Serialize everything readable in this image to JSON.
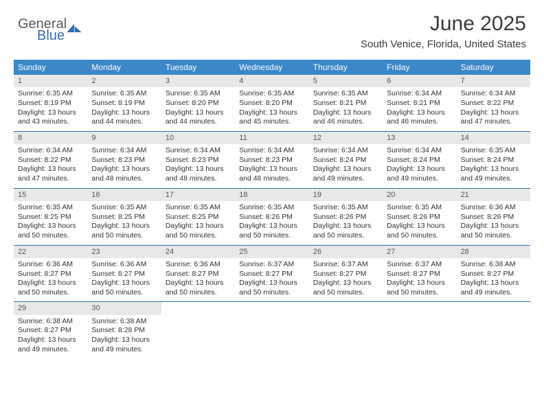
{
  "logo": {
    "text1": "General",
    "text2": "Blue"
  },
  "title": "June 2025",
  "location": "South Venice, Florida, United States",
  "day_header_bg": "#3b87c8",
  "day_header_fg": "#ffffff",
  "daynum_bg": "#e8e8e8",
  "border_color": "#2f6fb0",
  "text_color": "#333333",
  "body_fontsize": 10.5,
  "daynames": [
    "Sunday",
    "Monday",
    "Tuesday",
    "Wednesday",
    "Thursday",
    "Friday",
    "Saturday"
  ],
  "days": [
    {
      "n": "1",
      "sr": "6:35 AM",
      "ss": "8:19 PM",
      "dlh": "13",
      "dlm": "43"
    },
    {
      "n": "2",
      "sr": "6:35 AM",
      "ss": "8:19 PM",
      "dlh": "13",
      "dlm": "44"
    },
    {
      "n": "3",
      "sr": "6:35 AM",
      "ss": "8:20 PM",
      "dlh": "13",
      "dlm": "44"
    },
    {
      "n": "4",
      "sr": "6:35 AM",
      "ss": "8:20 PM",
      "dlh": "13",
      "dlm": "45"
    },
    {
      "n": "5",
      "sr": "6:35 AM",
      "ss": "8:21 PM",
      "dlh": "13",
      "dlm": "46"
    },
    {
      "n": "6",
      "sr": "6:34 AM",
      "ss": "8:21 PM",
      "dlh": "13",
      "dlm": "46"
    },
    {
      "n": "7",
      "sr": "6:34 AM",
      "ss": "8:22 PM",
      "dlh": "13",
      "dlm": "47"
    },
    {
      "n": "8",
      "sr": "6:34 AM",
      "ss": "8:22 PM",
      "dlh": "13",
      "dlm": "47"
    },
    {
      "n": "9",
      "sr": "6:34 AM",
      "ss": "8:23 PM",
      "dlh": "13",
      "dlm": "48"
    },
    {
      "n": "10",
      "sr": "6:34 AM",
      "ss": "8:23 PM",
      "dlh": "13",
      "dlm": "48"
    },
    {
      "n": "11",
      "sr": "6:34 AM",
      "ss": "8:23 PM",
      "dlh": "13",
      "dlm": "48"
    },
    {
      "n": "12",
      "sr": "6:34 AM",
      "ss": "8:24 PM",
      "dlh": "13",
      "dlm": "49"
    },
    {
      "n": "13",
      "sr": "6:34 AM",
      "ss": "8:24 PM",
      "dlh": "13",
      "dlm": "49"
    },
    {
      "n": "14",
      "sr": "6:35 AM",
      "ss": "8:24 PM",
      "dlh": "13",
      "dlm": "49"
    },
    {
      "n": "15",
      "sr": "6:35 AM",
      "ss": "8:25 PM",
      "dlh": "13",
      "dlm": "50"
    },
    {
      "n": "16",
      "sr": "6:35 AM",
      "ss": "8:25 PM",
      "dlh": "13",
      "dlm": "50"
    },
    {
      "n": "17",
      "sr": "6:35 AM",
      "ss": "8:25 PM",
      "dlh": "13",
      "dlm": "50"
    },
    {
      "n": "18",
      "sr": "6:35 AM",
      "ss": "8:26 PM",
      "dlh": "13",
      "dlm": "50"
    },
    {
      "n": "19",
      "sr": "6:35 AM",
      "ss": "8:26 PM",
      "dlh": "13",
      "dlm": "50"
    },
    {
      "n": "20",
      "sr": "6:35 AM",
      "ss": "8:26 PM",
      "dlh": "13",
      "dlm": "50"
    },
    {
      "n": "21",
      "sr": "6:36 AM",
      "ss": "8:26 PM",
      "dlh": "13",
      "dlm": "50"
    },
    {
      "n": "22",
      "sr": "6:36 AM",
      "ss": "8:27 PM",
      "dlh": "13",
      "dlm": "50"
    },
    {
      "n": "23",
      "sr": "6:36 AM",
      "ss": "8:27 PM",
      "dlh": "13",
      "dlm": "50"
    },
    {
      "n": "24",
      "sr": "6:36 AM",
      "ss": "8:27 PM",
      "dlh": "13",
      "dlm": "50"
    },
    {
      "n": "25",
      "sr": "6:37 AM",
      "ss": "8:27 PM",
      "dlh": "13",
      "dlm": "50"
    },
    {
      "n": "26",
      "sr": "6:37 AM",
      "ss": "8:27 PM",
      "dlh": "13",
      "dlm": "50"
    },
    {
      "n": "27",
      "sr": "6:37 AM",
      "ss": "8:27 PM",
      "dlh": "13",
      "dlm": "50"
    },
    {
      "n": "28",
      "sr": "6:38 AM",
      "ss": "8:27 PM",
      "dlh": "13",
      "dlm": "49"
    },
    {
      "n": "29",
      "sr": "6:38 AM",
      "ss": "8:27 PM",
      "dlh": "13",
      "dlm": "49"
    },
    {
      "n": "30",
      "sr": "6:38 AM",
      "ss": "8:28 PM",
      "dlh": "13",
      "dlm": "49"
    }
  ],
  "labels": {
    "sunrise": "Sunrise:",
    "sunset": "Sunset:",
    "daylight_prefix": "Daylight:",
    "hours_word": "hours",
    "and_word": "and",
    "minutes_word": "minutes."
  }
}
